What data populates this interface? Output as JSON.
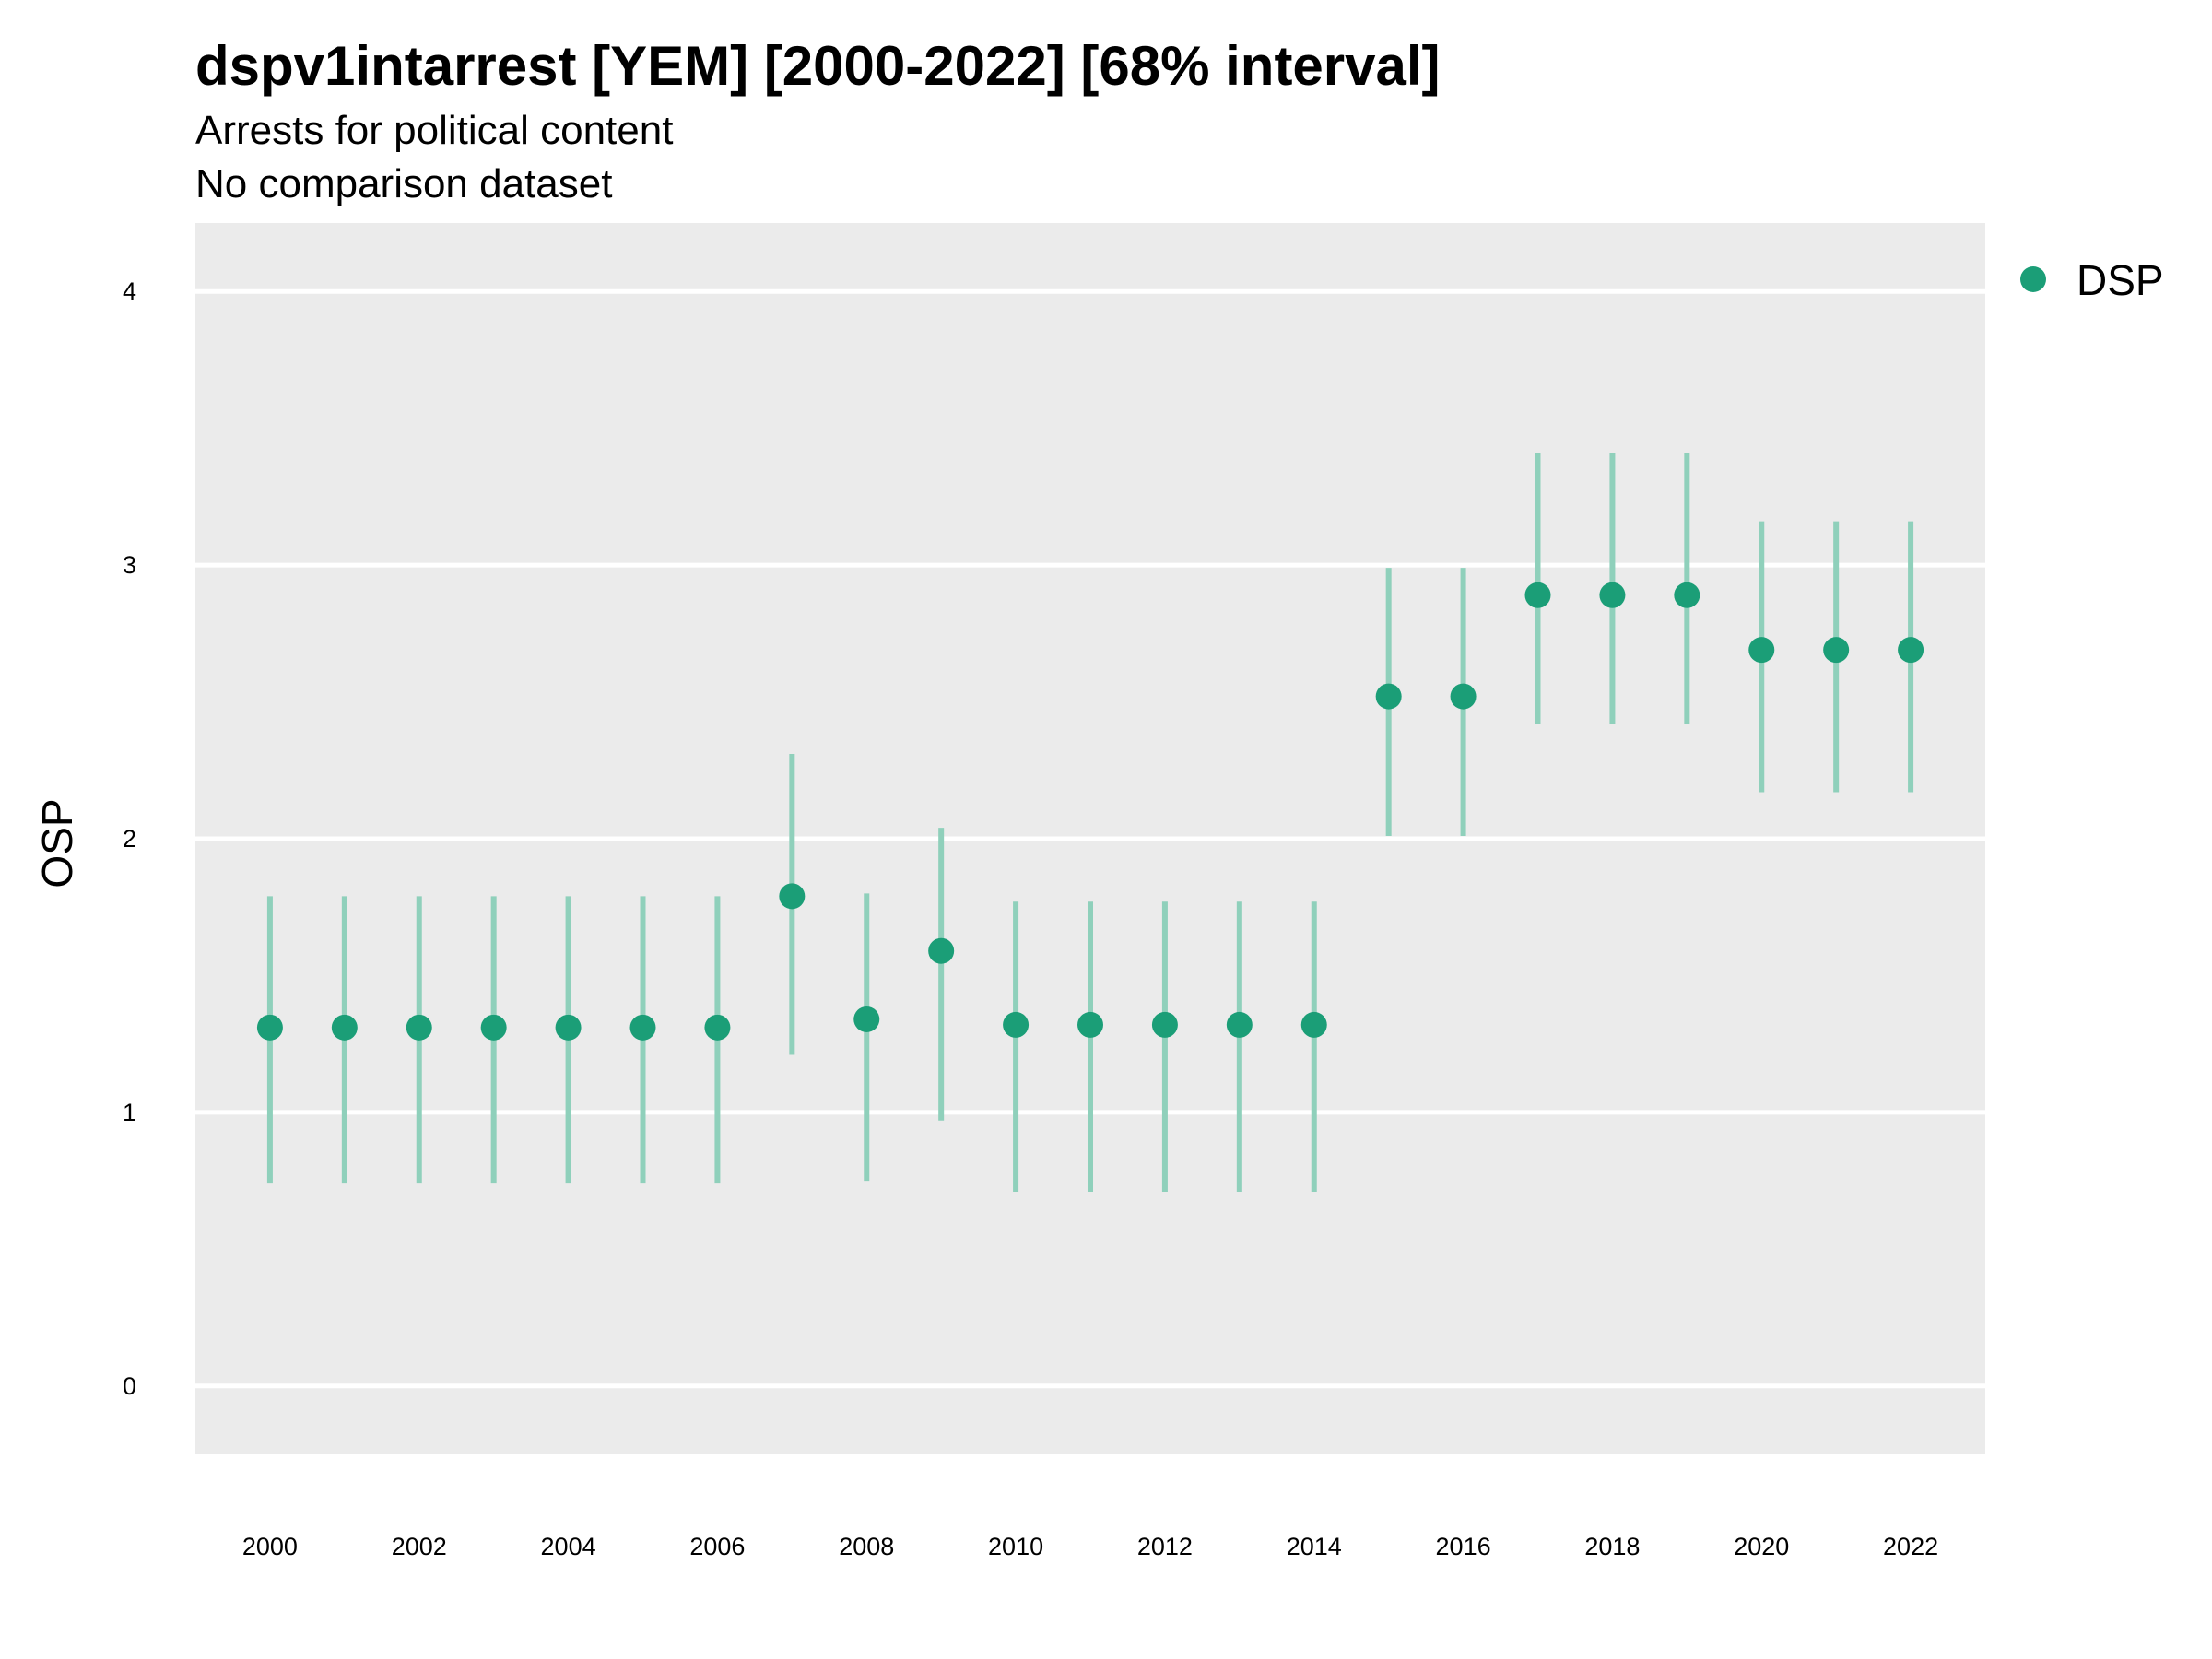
{
  "chart_data": {
    "type": "scatter",
    "title": "dspv1intarrest [YEM] [2000-2022] [68% interval]",
    "subtitle": "Arrests for political content",
    "subtitle2": "No comparison dataset",
    "xlabel": "",
    "ylabel": "OSP",
    "x_ticks": [
      "2000",
      "2002",
      "2004",
      "2006",
      "2008",
      "2010",
      "2012",
      "2014",
      "2016",
      "2018",
      "2020",
      "2022"
    ],
    "y_ticks": [
      "0",
      "1",
      "2",
      "3",
      "4"
    ],
    "xlim": [
      1999,
      2023
    ],
    "ylim": [
      -0.25,
      4.25
    ],
    "grid": true,
    "legend_position": "right",
    "series": [
      {
        "name": "DSP",
        "color": "#1b9e77",
        "interval_color": "#8fd0bb",
        "x": [
          2000,
          2001,
          2002,
          2003,
          2004,
          2005,
          2006,
          2007,
          2008,
          2009,
          2010,
          2011,
          2012,
          2013,
          2014,
          2015,
          2016,
          2017,
          2018,
          2019,
          2020,
          2021,
          2022
        ],
        "y": [
          1.31,
          1.31,
          1.31,
          1.31,
          1.31,
          1.31,
          1.31,
          1.79,
          1.34,
          1.59,
          1.32,
          1.32,
          1.32,
          1.32,
          1.32,
          2.52,
          2.52,
          2.89,
          2.89,
          2.89,
          2.69,
          2.69,
          2.69
        ],
        "lower": [
          0.74,
          0.74,
          0.74,
          0.74,
          0.74,
          0.74,
          0.74,
          1.21,
          0.75,
          0.97,
          0.71,
          0.71,
          0.71,
          0.71,
          0.71,
          2.01,
          2.01,
          2.42,
          2.42,
          2.42,
          2.17,
          2.17,
          2.17
        ],
        "upper": [
          1.79,
          1.79,
          1.79,
          1.79,
          1.79,
          1.79,
          1.79,
          2.31,
          1.8,
          2.04,
          1.77,
          1.77,
          1.77,
          1.77,
          1.77,
          2.99,
          2.99,
          3.41,
          3.41,
          3.41,
          3.16,
          3.16,
          3.16
        ]
      }
    ]
  }
}
